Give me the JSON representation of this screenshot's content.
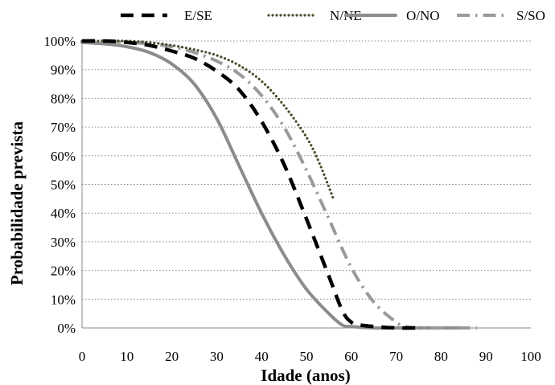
{
  "chart_data": {
    "type": "line",
    "xlabel": "Idade (anos)",
    "ylabel": "Probabilidade  prevista",
    "xlim": [
      0,
      100
    ],
    "ylim": [
      0,
      1
    ],
    "x_ticks": [
      "0",
      "10",
      "20",
      "30",
      "40",
      "50",
      "60",
      "70",
      "80",
      "90",
      "100"
    ],
    "y_ticks": [
      "0%",
      "10%",
      "20%",
      "30%",
      "40%",
      "50%",
      "60%",
      "70%",
      "80%",
      "90%",
      "100%"
    ],
    "grid": "horizontal dotted",
    "legend_position": "top",
    "series": [
      {
        "name": "E/SE",
        "style": "dashed",
        "color": "#000000",
        "points": [
          [
            0,
            1.0
          ],
          [
            5,
            1.0
          ],
          [
            10,
            0.995
          ],
          [
            15,
            0.985
          ],
          [
            20,
            0.965
          ],
          [
            25,
            0.94
          ],
          [
            30,
            0.895
          ],
          [
            35,
            0.83
          ],
          [
            40,
            0.72
          ],
          [
            45,
            0.57
          ],
          [
            50,
            0.38
          ],
          [
            55,
            0.18
          ],
          [
            58,
            0.06
          ],
          [
            60,
            0.02
          ],
          [
            62,
            0.01
          ],
          [
            65,
            0.005
          ],
          [
            70,
            0.0
          ],
          [
            75,
            0.0
          ]
        ]
      },
      {
        "name": "N/NE",
        "style": "dotted",
        "color": "#4a4a2a",
        "points": [
          [
            0,
            1.0
          ],
          [
            5,
            1.0
          ],
          [
            10,
            1.0
          ],
          [
            15,
            0.995
          ],
          [
            20,
            0.985
          ],
          [
            25,
            0.97
          ],
          [
            30,
            0.95
          ],
          [
            35,
            0.915
          ],
          [
            40,
            0.86
          ],
          [
            45,
            0.775
          ],
          [
            50,
            0.665
          ],
          [
            53,
            0.57
          ],
          [
            56,
            0.45
          ]
        ]
      },
      {
        "name": "O/NO",
        "style": "solid",
        "color": "#8c8c8c",
        "points": [
          [
            0,
            0.995
          ],
          [
            5,
            0.99
          ],
          [
            10,
            0.98
          ],
          [
            15,
            0.96
          ],
          [
            20,
            0.92
          ],
          [
            25,
            0.85
          ],
          [
            30,
            0.73
          ],
          [
            35,
            0.565
          ],
          [
            40,
            0.4
          ],
          [
            45,
            0.255
          ],
          [
            50,
            0.135
          ],
          [
            55,
            0.05
          ],
          [
            58,
            0.01
          ],
          [
            60,
            0.005
          ],
          [
            65,
            0.0
          ],
          [
            70,
            0.0
          ],
          [
            75,
            0.0
          ],
          [
            80,
            0.0
          ],
          [
            85,
            0.0
          ]
        ]
      },
      {
        "name": "S/SO",
        "style": "dash-dot",
        "color": "#9a9a9a",
        "points": [
          [
            0,
            1.0
          ],
          [
            5,
            1.0
          ],
          [
            10,
            0.995
          ],
          [
            15,
            0.99
          ],
          [
            20,
            0.98
          ],
          [
            25,
            0.96
          ],
          [
            30,
            0.93
          ],
          [
            35,
            0.885
          ],
          [
            40,
            0.81
          ],
          [
            45,
            0.7
          ],
          [
            50,
            0.55
          ],
          [
            55,
            0.38
          ],
          [
            60,
            0.21
          ],
          [
            65,
            0.09
          ],
          [
            70,
            0.02
          ],
          [
            72,
            0.005
          ],
          [
            75,
            0.0
          ],
          [
            80,
            0.0
          ],
          [
            85,
            0.0
          ],
          [
            88,
            0.0
          ]
        ]
      }
    ]
  }
}
